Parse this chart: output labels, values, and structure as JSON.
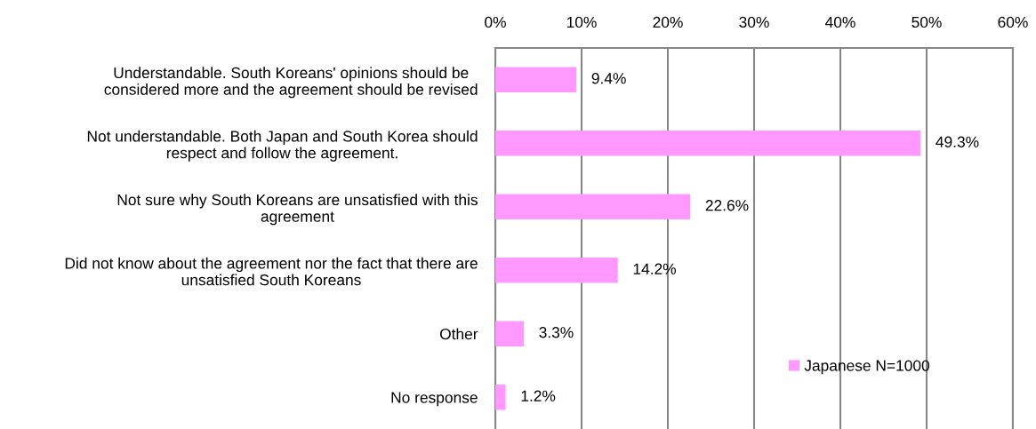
{
  "chart_data": {
    "type": "bar",
    "orientation": "horizontal",
    "categories": [
      "Understandable. South Koreans' opinions should be\nconsidered more and the agreement should be revised",
      "Not understandable. Both Japan and South Korea should\nrespect and follow the agreement.",
      "Not sure why South Koreans are unsatisfied with this\nagreement",
      "Did not know about the agreement nor the fact that there are\nunsatisfied South Koreans",
      "Other",
      "No response"
    ],
    "series": [
      {
        "name": "Japanese N=1000",
        "color": "#ff99ff",
        "values": [
          9.4,
          49.3,
          22.6,
          14.2,
          3.3,
          1.2
        ],
        "value_labels": [
          "9.4%",
          "49.3%",
          "22.6%",
          "14.2%",
          "3.3%",
          "1.2%"
        ]
      }
    ],
    "xlim": [
      0,
      60
    ],
    "xticks": [
      {
        "value": 0,
        "label": "0%"
      },
      {
        "value": 10,
        "label": "10%"
      },
      {
        "value": 20,
        "label": "20%"
      },
      {
        "value": 30,
        "label": "30%"
      },
      {
        "value": 40,
        "label": "40%"
      },
      {
        "value": 50,
        "label": "50%"
      },
      {
        "value": 60,
        "label": "60%"
      }
    ],
    "grid": "x",
    "legend": "bottom right"
  }
}
